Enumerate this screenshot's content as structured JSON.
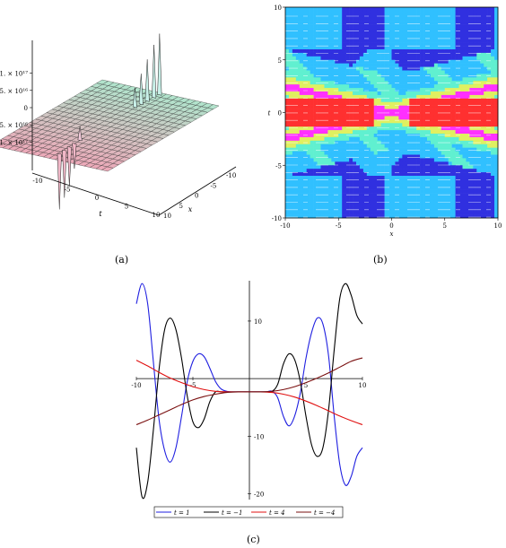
{
  "panels": {
    "a": {
      "caption": "(a)"
    },
    "b": {
      "caption": "(b)"
    },
    "c": {
      "caption": "(c)"
    }
  },
  "chart_data": [
    {
      "panel": "a",
      "type": "surface",
      "z_ticks": [
        "1. × 10¹⁷",
        "5. × 10¹⁶",
        "0",
        "-5. × 10¹⁶",
        "-1. × 10¹⁷"
      ],
      "t_ticks": [
        "-10",
        "-5",
        "0",
        "5",
        "10"
      ],
      "x_ticks": [
        "10",
        "5",
        "0",
        "-5",
        "-10"
      ],
      "xlabel": "x",
      "tlabel": "t",
      "peaks": [
        {
          "t": 0.3,
          "x": 9.5,
          "z": 1.1e+17
        },
        {
          "t": 0.2,
          "x": 8.6,
          "z": 9.5e+16
        },
        {
          "t": 0.1,
          "x": 7.5,
          "z": 7.5e+16
        },
        {
          "t": 0.0,
          "x": 6.5,
          "z": 5.5e+16
        },
        {
          "t": -0.1,
          "x": 5.5,
          "z": 3.5e+16
        },
        {
          "t": 0.0,
          "x": -4.5,
          "z": 2.5e+16
        },
        {
          "t": 0.0,
          "x": -5.5,
          "z": -4.5e+16
        },
        {
          "t": 0.1,
          "x": -6.5,
          "z": -7e+16
        },
        {
          "t": 0.2,
          "x": -7.5,
          "z": -8.5e+16
        },
        {
          "t": 0.3,
          "x": -8.5,
          "z": -1e+17
        }
      ]
    },
    {
      "panel": "b",
      "type": "heatmap",
      "x_ticks": [
        "-10",
        "-5",
        "0",
        "5",
        "10"
      ],
      "t_ticks": [
        "10",
        "5",
        "0",
        "-5",
        "-10"
      ],
      "xlabel": "x",
      "ylabel": "t",
      "xlim": [
        -10,
        10
      ],
      "ylim": [
        -10,
        10
      ],
      "colormap": [
        "#3030e0",
        "#30c0ff",
        "#60f0d0",
        "#e0f060",
        "#ff30ff",
        "#ff3030"
      ]
    },
    {
      "panel": "c",
      "type": "line",
      "xlim": [
        -10,
        10
      ],
      "ylim": [
        -21,
        17
      ],
      "x_ticks": [
        "-10",
        "-5",
        "5",
        "10"
      ],
      "y_ticks": [
        "10",
        "-10",
        "-20"
      ],
      "series": [
        {
          "name": "t = 1",
          "color": "#1f1fe0",
          "x": [
            -10,
            -9.5,
            -9,
            -8.5,
            -8,
            -7.5,
            -7,
            -6.5,
            -6,
            -5.5,
            -5,
            -4.5,
            -4,
            -3.5,
            -3,
            -2.5,
            -2,
            -1.5,
            -1,
            -0.5,
            0,
            0.5,
            1,
            1.5,
            2,
            2.5,
            3,
            3.5,
            4,
            4.5,
            5,
            5.5,
            6,
            6.5,
            7,
            7.5,
            8,
            8.5,
            9,
            9.5,
            10
          ],
          "y": [
            13,
            16.5,
            13,
            3,
            -7,
            -12.5,
            -14.5,
            -12,
            -6.5,
            -0.5,
            3,
            4.3,
            3.8,
            1.8,
            -0.5,
            -1.8,
            -2.2,
            -2.3,
            -2.3,
            -2.3,
            -2.3,
            -2.3,
            -2.3,
            -2.3,
            -2.2,
            -3.3,
            -6.5,
            -8.2,
            -6.5,
            -2.5,
            3.5,
            8,
            10.5,
            9.5,
            4,
            -6.5,
            -15,
            -18.5,
            -17,
            -13.5,
            -12
          ]
        },
        {
          "name": "t = −1",
          "color": "#000000",
          "x": [
            -10,
            -9.5,
            -9,
            -8.5,
            -8,
            -7.5,
            -7,
            -6.5,
            -6,
            -5.5,
            -5,
            -4.5,
            -4,
            -3.5,
            -3,
            -2.5,
            -2,
            -1.5,
            -1,
            -0.5,
            0,
            0.5,
            1,
            1.5,
            2,
            2.5,
            3,
            3.5,
            4,
            4.5,
            5,
            5.5,
            6,
            6.5,
            7,
            7.5,
            8,
            8.5,
            9,
            9.5,
            10
          ],
          "y": [
            -12,
            -20.5,
            -18,
            -9,
            1.5,
            8.5,
            10.5,
            8.5,
            3.5,
            -3,
            -7.5,
            -8.5,
            -7,
            -4,
            -2.3,
            -2.3,
            -2.3,
            -2.3,
            -2.3,
            -2.3,
            -2.3,
            -2.3,
            -2.3,
            -2.3,
            -2.2,
            -1,
            2.5,
            4.3,
            3.3,
            -0.5,
            -6.5,
            -11.5,
            -13.5,
            -12,
            -5.5,
            5,
            14,
            16.5,
            14.5,
            11,
            9.5
          ]
        },
        {
          "name": "t = 4",
          "color": "#e01010",
          "x": [
            -10,
            -9,
            -8,
            -7,
            -6,
            -5,
            -4,
            -3,
            -2,
            -1,
            0,
            1,
            2,
            3,
            4,
            5,
            6,
            7,
            8,
            9,
            10
          ],
          "y": [
            3.2,
            2.2,
            1.1,
            0.1,
            -0.7,
            -1.4,
            -1.9,
            -2.2,
            -2.3,
            -2.3,
            -2.3,
            -2.3,
            -2.4,
            -2.7,
            -3.2,
            -3.9,
            -4.7,
            -5.6,
            -6.5,
            -7.3,
            -8
          ]
        },
        {
          "name": "t = −4",
          "color": "#7a1010",
          "x": [
            -10,
            -9,
            -8,
            -7,
            -6,
            -5,
            -4,
            -3,
            -2,
            -1,
            0,
            1,
            2,
            3,
            4,
            5,
            6,
            7,
            8,
            9,
            10
          ],
          "y": [
            -8,
            -7.2,
            -6.3,
            -5.4,
            -4.5,
            -3.7,
            -3.1,
            -2.7,
            -2.4,
            -2.3,
            -2.3,
            -2.3,
            -2.2,
            -1.9,
            -1.4,
            -0.7,
            0.1,
            1,
            2,
            3,
            3.6
          ]
        }
      ],
      "legend_position": "bottom"
    }
  ]
}
